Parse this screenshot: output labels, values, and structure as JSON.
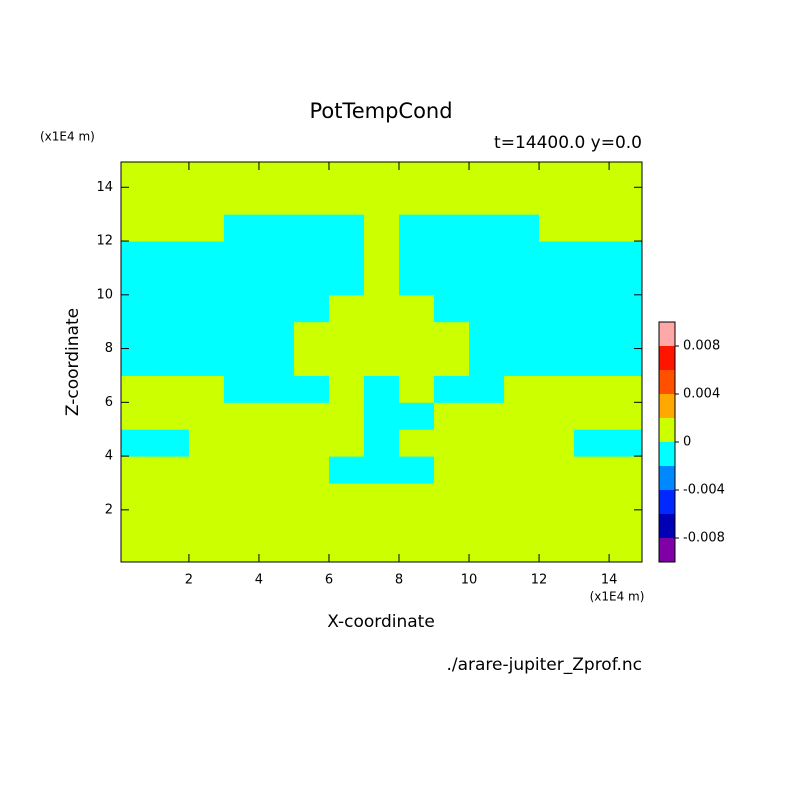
{
  "chart_data": {
    "type": "contour",
    "title": "PotTempCond",
    "subtitle": "t=14400.0 y=0.0",
    "x_label": "X-coordinate",
    "y_label": "Z-coordinate",
    "x_unit": "(x1E4 m)",
    "y_unit": "(x1E4 m)",
    "source": "./arare-jupiter_Zprof.nc",
    "xlim": [
      0.06,
      14.94
    ],
    "ylim": [
      0.06,
      14.94
    ],
    "xticks": [
      2,
      4,
      6,
      8,
      10,
      12,
      14
    ],
    "yticks": [
      2,
      4,
      6,
      8,
      10,
      12,
      14
    ],
    "x": [
      0.5,
      1.5,
      2.5,
      3.5,
      4.5,
      5.5,
      6.5,
      7.5,
      8.5,
      9.5,
      10.5,
      11.5,
      12.5,
      13.5,
      14.5
    ],
    "y": [
      0.5,
      1.5,
      2.5,
      3.5,
      4.5,
      5.5,
      6.5,
      7.5,
      8.5,
      9.5,
      10.5,
      11.5,
      12.5,
      13.5,
      14.5
    ],
    "z": [
      [
        0.001,
        0.001,
        0.001,
        0.001,
        0.001,
        0.001,
        0.001,
        0.001,
        0.001,
        0.001,
        0.001,
        0.001,
        0.001,
        0.001,
        0.001
      ],
      [
        0.001,
        0.001,
        0.001,
        0.001,
        0.001,
        0.001,
        0.001,
        0.001,
        0.001,
        0.001,
        0.001,
        0.001,
        0.001,
        0.001,
        0.001
      ],
      [
        0.001,
        0.001,
        0.001,
        0.001,
        0.001,
        0.001,
        0.001,
        0.001,
        0.001,
        0.001,
        0.001,
        0.001,
        0.001,
        0.001,
        0.001
      ],
      [
        0.001,
        0.001,
        0.001,
        0.001,
        0.001,
        0.001,
        -0.001,
        -0.001,
        -0.001,
        0.001,
        0.001,
        0.001,
        0.001,
        0.001,
        0.001
      ],
      [
        -0.001,
        -0.001,
        0.001,
        0.001,
        0.001,
        0.001,
        0.001,
        -0.001,
        0.001,
        0.001,
        0.001,
        0.001,
        0.001,
        -0.001,
        -0.001
      ],
      [
        0.001,
        0.001,
        0.001,
        0.001,
        0.001,
        0.001,
        0.001,
        -0.001,
        -0.001,
        0.001,
        0.001,
        0.001,
        0.001,
        0.001,
        0.001
      ],
      [
        0.001,
        0.001,
        0.001,
        -0.001,
        -0.001,
        -0.001,
        0.001,
        -0.001,
        0.001,
        -0.001,
        -0.001,
        0.001,
        0.001,
        0.001,
        0.001
      ],
      [
        -0.001,
        -0.001,
        -0.001,
        -0.001,
        -0.001,
        0.001,
        0.001,
        0.001,
        0.001,
        0.001,
        -0.001,
        -0.001,
        -0.001,
        -0.001,
        -0.001
      ],
      [
        -0.001,
        -0.001,
        -0.001,
        -0.001,
        -0.001,
        0.001,
        0.001,
        0.001,
        0.001,
        0.001,
        -0.001,
        -0.001,
        -0.001,
        -0.001,
        -0.001
      ],
      [
        -0.001,
        -0.001,
        -0.001,
        -0.001,
        -0.001,
        -0.001,
        0.001,
        0.001,
        0.001,
        -0.001,
        -0.001,
        -0.001,
        -0.001,
        -0.001,
        -0.001
      ],
      [
        -0.001,
        -0.001,
        -0.001,
        -0.001,
        -0.001,
        -0.001,
        -0.001,
        0.001,
        -0.001,
        -0.001,
        -0.001,
        -0.001,
        -0.001,
        -0.001,
        -0.001
      ],
      [
        -0.001,
        -0.001,
        -0.001,
        -0.001,
        -0.001,
        -0.001,
        -0.001,
        0.001,
        -0.001,
        -0.001,
        -0.001,
        -0.001,
        -0.001,
        -0.001,
        -0.001
      ],
      [
        0.001,
        0.001,
        0.001,
        -0.001,
        -0.001,
        -0.001,
        -0.001,
        0.001,
        -0.001,
        -0.001,
        -0.001,
        -0.001,
        0.001,
        0.001,
        0.001
      ],
      [
        0.001,
        0.001,
        0.001,
        0.001,
        0.001,
        0.001,
        0.001,
        0.001,
        0.001,
        0.001,
        0.001,
        0.001,
        0.001,
        0.001,
        0.001
      ],
      [
        0.001,
        0.001,
        0.001,
        0.001,
        0.001,
        0.001,
        0.001,
        0.001,
        0.001,
        0.001,
        0.001,
        0.001,
        0.001,
        0.001,
        0.001
      ]
    ],
    "levels": [
      -0.01,
      -0.008,
      -0.006,
      -0.004,
      -0.002,
      0,
      0.002,
      0.004,
      0.006,
      0.008,
      0.01
    ],
    "colors": [
      "#8000a8",
      "#0000b4",
      "#0028ff",
      "#0088ff",
      "#00ffff",
      "#ccff00",
      "#ffa800",
      "#ff5000",
      "#ff1400",
      "#ffa8a8"
    ],
    "colorbar_ticks": [
      -0.008,
      -0.004,
      0,
      0.004,
      0.008
    ]
  }
}
